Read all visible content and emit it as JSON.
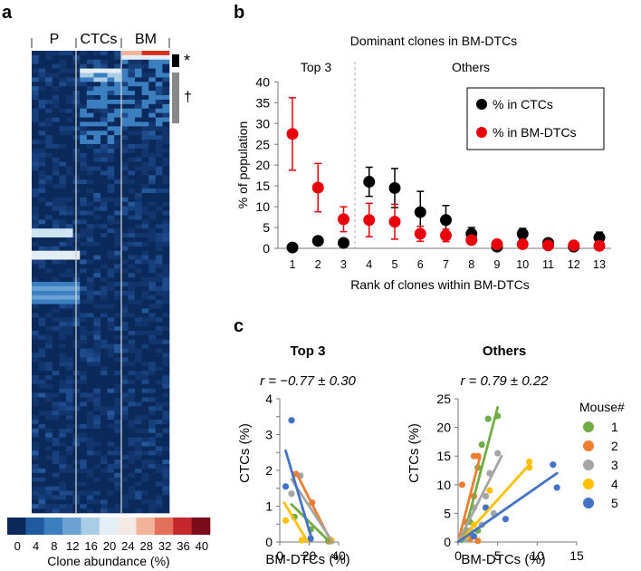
{
  "panel_labels": {
    "a": "a",
    "b": "b",
    "c": "c"
  },
  "heatmap": {
    "column_groups": [
      "P",
      "CTCs",
      "BM"
    ],
    "marker_star": "*",
    "marker_dagger": "†",
    "colorbar_ticks": [
      "0",
      "4",
      "8",
      "12",
      "16",
      "20",
      "24",
      "28",
      "32",
      "36",
      "40"
    ],
    "colorbar_colors": [
      "#0b2a5b",
      "#1f5aa0",
      "#3c7fc0",
      "#6ba2d3",
      "#a9cde6",
      "#e4eef5",
      "#f4e9e4",
      "#f3b39a",
      "#e3705a",
      "#c4272c",
      "#7a0b19"
    ],
    "colorbar_label": "Clone abundance (%)",
    "highlight_colors": {
      "dark": "#0b2a5b",
      "light": "#cfe4f3",
      "red": "#d7301f"
    }
  },
  "chart_data": [
    {
      "type": "scatter",
      "title": "Dominant clones in BM-DTCs",
      "regions": [
        "Top 3",
        "Others"
      ],
      "xlabel": "Rank of clones within BM-DTCs",
      "ylabel": "% of population",
      "x": [
        1,
        2,
        3,
        4,
        5,
        6,
        7,
        8,
        9,
        10,
        11,
        12,
        13
      ],
      "xlim": [
        0.5,
        13.5
      ],
      "ylim": [
        0,
        40
      ],
      "yticks": [
        0,
        5,
        10,
        15,
        20,
        25,
        30,
        35,
        40
      ],
      "legend_position": "top-right",
      "series": [
        {
          "name": "% in CTCs",
          "color": "#000000",
          "values": [
            0.2,
            1.8,
            1.3,
            16.0,
            14.5,
            8.7,
            6.8,
            3.5,
            0.4,
            3.5,
            1.3,
            0.4,
            2.6
          ],
          "errors": [
            0.3,
            1.0,
            0.6,
            3.5,
            4.7,
            5.0,
            3.5,
            1.5,
            0.5,
            1.3,
            0.6,
            0.5,
            1.3
          ]
        },
        {
          "name": "% in BM-DTCs",
          "color": "#e8000b",
          "values": [
            27.5,
            14.6,
            7.0,
            6.8,
            6.4,
            3.5,
            3.1,
            2.0,
            1.0,
            1.0,
            0.7,
            0.7,
            0.6
          ],
          "errors": [
            8.7,
            5.8,
            3.0,
            4.0,
            4.2,
            1.8,
            1.5,
            1.0,
            0.8,
            0.7,
            0.4,
            0.4,
            0.4
          ]
        }
      ]
    },
    {
      "type": "scatter",
      "title": "Top 3",
      "annotation": "r = −0.77 ± 0.30",
      "xlabel": "BM-DTCs (%)",
      "ylabel": "CTCs (%)",
      "xlim": [
        0,
        40
      ],
      "ylim": [
        0,
        4
      ],
      "xticks": [
        0,
        20,
        40
      ],
      "yticks": [
        0,
        0.5,
        1,
        1.5,
        2,
        2.5,
        3,
        3.5,
        4
      ],
      "series": [
        {
          "name": "1",
          "color": "#70ad47",
          "points": [
            [
              10,
              0.7
            ],
            [
              21,
              0.35
            ],
            [
              33,
              0.02
            ]
          ],
          "fit": [
            [
              8,
              1.05
            ],
            [
              34,
              0.0
            ]
          ]
        },
        {
          "name": "2",
          "color": "#ed7d31",
          "points": [
            [
              11,
              1.9
            ],
            [
              22,
              1.1
            ],
            [
              34,
              0.02
            ]
          ],
          "fit": [
            [
              11,
              1.95
            ],
            [
              35,
              0.0
            ]
          ]
        },
        {
          "name": "3",
          "color": "#a5a5a5",
          "points": [
            [
              8,
              1.35
            ],
            [
              14,
              1.85
            ],
            [
              35,
              0.02
            ]
          ],
          "fit": [
            [
              8,
              1.75
            ],
            [
              36,
              0.0
            ]
          ]
        },
        {
          "name": "4",
          "color": "#ffc000",
          "points": [
            [
              4,
              0.6
            ],
            [
              15,
              0.05
            ],
            [
              35,
              0.05
            ]
          ],
          "fit": [
            [
              3,
              1.1
            ],
            [
              19,
              0.0
            ]
          ]
        },
        {
          "name": "5",
          "color": "#4472c4",
          "points": [
            [
              8,
              3.4
            ],
            [
              4,
              1.55
            ],
            [
              21,
              0.1
            ]
          ],
          "fit": [
            [
              4,
              2.55
            ],
            [
              22,
              0.05
            ]
          ]
        }
      ]
    },
    {
      "type": "scatter",
      "title": "Others",
      "annotation": "r = 0.79 ± 0.22",
      "xlabel": "BM-DTCs (%)",
      "ylabel": "CTCs (%)",
      "xlim": [
        0,
        15
      ],
      "ylim": [
        0,
        25
      ],
      "xticks": [
        0,
        5,
        10,
        15
      ],
      "yticks": [
        0,
        5,
        10,
        15,
        20,
        25
      ],
      "legend_title": "Mouse#",
      "legend_position": "right",
      "series": [
        {
          "name": "1",
          "color": "#70ad47",
          "points": [
            [
              5.0,
              22.0
            ],
            [
              3.8,
              21.5
            ],
            [
              3.0,
              17.0
            ],
            [
              2.5,
              13.0
            ],
            [
              2.0,
              6.0
            ],
            [
              1.5,
              3.5
            ],
            [
              1.2,
              1.0
            ],
            [
              0.8,
              0.5
            ],
            [
              2.5,
              2.0
            ]
          ],
          "fit": [
            [
              0.5,
              0.0
            ],
            [
              5.0,
              23.5
            ]
          ]
        },
        {
          "name": "2",
          "color": "#ed7d31",
          "points": [
            [
              2.5,
              15.0
            ],
            [
              2.0,
              15.0
            ],
            [
              0.5,
              10.0
            ],
            [
              2.0,
              8.0
            ],
            [
              1.0,
              3.5
            ],
            [
              1.5,
              0.5
            ],
            [
              2.5,
              0.2
            ],
            [
              1.0,
              2.0
            ]
          ],
          "fit": [
            [
              0.0,
              0.0
            ],
            [
              2.8,
              15.0
            ]
          ]
        },
        {
          "name": "3",
          "color": "#a5a5a5",
          "points": [
            [
              5.0,
              15.5
            ],
            [
              4.0,
              12.0
            ],
            [
              3.5,
              8.0
            ],
            [
              2.0,
              6.0
            ],
            [
              4.5,
              5.0
            ],
            [
              3.0,
              3.0
            ],
            [
              1.5,
              2.0
            ],
            [
              1.0,
              0.5
            ]
          ],
          "fit": [
            [
              0.0,
              0.0
            ],
            [
              5.5,
              15.0
            ]
          ]
        },
        {
          "name": "4",
          "color": "#ffc000",
          "points": [
            [
              9.0,
              14.0
            ],
            [
              9.0,
              13.0
            ],
            [
              4.0,
              9.0
            ],
            [
              3.5,
              6.0
            ],
            [
              2.0,
              3.0
            ],
            [
              1.0,
              1.0
            ]
          ],
          "fit": [
            [
              0.5,
              0.5
            ],
            [
              9.0,
              13.5
            ]
          ]
        },
        {
          "name": "5",
          "color": "#4472c4",
          "points": [
            [
              12.0,
              13.5
            ],
            [
              12.5,
              9.5
            ],
            [
              6.0,
              4.0
            ],
            [
              3.5,
              6.0
            ],
            [
              2.0,
              1.0
            ]
          ],
          "fit": [
            [
              0.0,
              0.0
            ],
            [
              12.5,
              12.0
            ]
          ]
        }
      ]
    }
  ]
}
